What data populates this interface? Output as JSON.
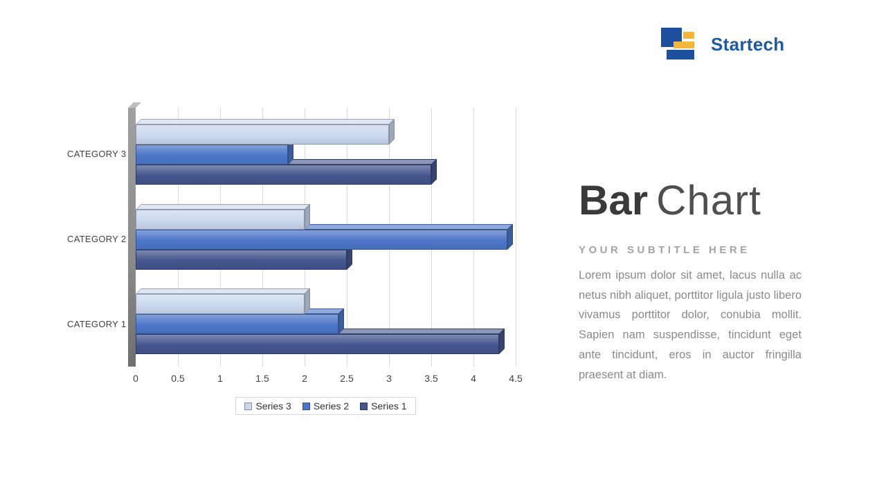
{
  "logo": {
    "brand": "Startech"
  },
  "heading": {
    "bold": "Bar",
    "light": "Chart"
  },
  "subtitle": "YOUR SUBTITLE HERE",
  "paragraph": "Lorem ipsum dolor sit amet, lacus nulla ac netus nibh aliquet, porttitor ligula justo libero vivamus porttitor dolor, conubia mollit. Sapien nam suspendisse, tincidunt eget ante tincidunt, eros in auctor fringilla praesent at diam.",
  "colors": {
    "navy": "#1d4f9e",
    "yellow": "#f2b63c",
    "brand_text": "#1d5a9e",
    "title_dark": "#3a3a3a",
    "title_light": "#4f4f4f",
    "subtitle_gray": "#a3a3a3",
    "body_gray": "#8a8a8a",
    "grid_gray": "#d9d9d9",
    "wall_gray": "#8a8a8a",
    "axis_text": "#404040"
  },
  "chart_data": {
    "type": "bar",
    "orientation": "horizontal",
    "title": "",
    "categories": [
      "CATEGORY 1",
      "CATEGORY 2",
      "CATEGORY 3"
    ],
    "series": [
      {
        "name": "Series 1",
        "color": "#44568e",
        "values": [
          4.3,
          2.5,
          3.5
        ]
      },
      {
        "name": "Series 2",
        "color": "#4d76c8",
        "values": [
          2.4,
          4.4,
          1.8
        ]
      },
      {
        "name": "Series 3",
        "color": "#ccd8ee",
        "values": [
          2,
          2,
          3
        ]
      }
    ],
    "xlim": [
      0,
      4.5
    ],
    "xticks": [
      "0",
      "0.5",
      "1",
      "1.5",
      "2",
      "2.5",
      "3",
      "3.5",
      "4",
      "4.5"
    ],
    "grid": true,
    "legend_position": "bottom",
    "legend_order": [
      "Series 3",
      "Series 2",
      "Series 1"
    ],
    "style": "3d"
  }
}
